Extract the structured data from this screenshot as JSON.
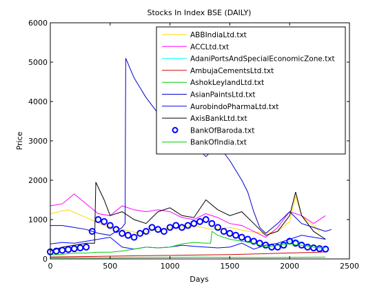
{
  "chart_data": {
    "type": "line",
    "title": "Stocks In Index BSE (DAILY)",
    "xlabel": "Days",
    "ylabel": "Price",
    "xlim": [
      0,
      2500
    ],
    "ylim": [
      0,
      6000
    ],
    "xticks": [
      0,
      500,
      1000,
      1500,
      2000,
      2500
    ],
    "yticks": [
      0,
      1000,
      2000,
      3000,
      4000,
      5000,
      6000
    ],
    "xtick_labels": [
      "0",
      "500",
      "1000",
      "1500",
      "2000",
      "2500"
    ],
    "ytick_labels": [
      "0",
      "1000",
      "2000",
      "3000",
      "4000",
      "5000",
      "6000"
    ],
    "grid": false,
    "legend_position": "top-right",
    "series": [
      {
        "name": "ABBIndiaLtd.txt",
        "color": "#ffd700",
        "marker": "line",
        "x": [
          0,
          150,
          300,
          450,
          600,
          750,
          900,
          1050,
          1200,
          1350,
          1500,
          1650,
          1800,
          1900,
          2000,
          2050,
          2100,
          2150,
          2200,
          2250
        ],
        "y": [
          1150,
          1250,
          1050,
          850,
          750,
          650,
          750,
          800,
          850,
          750,
          800,
          700,
          650,
          700,
          950,
          1600,
          1100,
          950,
          850,
          700
        ]
      },
      {
        "name": "ACCLtd.txt",
        "color": "#ff00ff",
        "marker": "line",
        "x": [
          0,
          100,
          200,
          300,
          400,
          500,
          600,
          700,
          800,
          900,
          1000,
          1100,
          1200,
          1300,
          1400,
          1500,
          1600,
          1700,
          1800,
          1900,
          2000,
          2100,
          2200,
          2300
        ],
        "y": [
          1350,
          1400,
          1650,
          1400,
          1150,
          1100,
          1350,
          1250,
          1200,
          1250,
          1200,
          1050,
          1000,
          1150,
          1050,
          900,
          850,
          700,
          550,
          800,
          1200,
          1100,
          900,
          1100
        ]
      },
      {
        "name": "AdaniPortsAndSpecialEconomicZone.txt",
        "color": "#00ffff",
        "marker": "line",
        "x": [
          1700,
          1800,
          1900,
          2000,
          2050,
          2100,
          2150,
          2200,
          2250,
          2300
        ],
        "y": [
          400,
          300,
          350,
          450,
          500,
          400,
          350,
          300,
          250,
          300
        ]
      },
      {
        "name": "AmbujaCementsLtd.txt",
        "color": "#cc0000",
        "marker": "line",
        "x": [
          0,
          250,
          500,
          750,
          1000,
          1250,
          1500,
          1750,
          2000,
          2250,
          2300
        ],
        "y": [
          50,
          60,
          70,
          80,
          90,
          100,
          110,
          130,
          150,
          170,
          180
        ]
      },
      {
        "name": "AshokLeylandLtd.txt",
        "color": "#00cc00",
        "marker": "line",
        "x": [
          0,
          250,
          500,
          750,
          1000,
          1250,
          1500,
          1750,
          2000,
          2250,
          2300
        ],
        "y": [
          30,
          30,
          30,
          35,
          40,
          45,
          40,
          35,
          40,
          45,
          45
        ]
      },
      {
        "name": "AsianPaintsLtd.txt",
        "color": "#0000cc",
        "marker": "line",
        "x": [
          0,
          100,
          200,
          300,
          400,
          500,
          600,
          625,
          630,
          700,
          800,
          900,
          1000,
          1100,
          1200,
          1300,
          1400,
          1500,
          1600,
          1650,
          1700,
          1750,
          1800,
          1900,
          2000,
          2100,
          2200,
          2300,
          2350
        ],
        "y": [
          850,
          850,
          800,
          750,
          650,
          600,
          800,
          900,
          5100,
          4600,
          4100,
          3700,
          3400,
          3200,
          2900,
          2600,
          2900,
          2500,
          2000,
          1700,
          1200,
          800,
          650,
          900,
          1200,
          900,
          800,
          700,
          750
        ]
      },
      {
        "name": "AurobindoPharmaLtd.txt",
        "color": "#0000ff",
        "marker": "line",
        "x": [
          0,
          100,
          200,
          300,
          400,
          500,
          600,
          700,
          800,
          900,
          1000,
          1100,
          1200,
          1300,
          1400,
          1500,
          1600,
          1700,
          1800,
          1900,
          2000,
          2100,
          2200,
          2300
        ],
        "y": [
          380,
          420,
          400,
          450,
          500,
          550,
          300,
          250,
          300,
          280,
          300,
          350,
          320,
          300,
          280,
          300,
          400,
          250,
          350,
          400,
          500,
          600,
          550,
          500
        ]
      },
      {
        "name": "AxisBankLtd.txt",
        "color": "#000000",
        "marker": "line",
        "x": [
          0,
          100,
          200,
          300,
          370,
          380,
          450,
          500,
          600,
          700,
          800,
          900,
          1000,
          1100,
          1200,
          1300,
          1400,
          1500,
          1600,
          1700,
          1800,
          1900,
          2000,
          2050,
          2100,
          2200,
          2300
        ],
        "y": [
          200,
          300,
          350,
          400,
          400,
          1950,
          1500,
          1100,
          1200,
          1000,
          900,
          1200,
          1300,
          1100,
          1050,
          1500,
          1250,
          1100,
          1200,
          900,
          600,
          700,
          1100,
          1700,
          1100,
          700,
          500
        ]
      },
      {
        "name": "BankOfBaroda.txt",
        "color": "#0000ff",
        "marker": "circle",
        "x": [
          0,
          50,
          100,
          150,
          200,
          250,
          300,
          350,
          400,
          450,
          500,
          550,
          600,
          650,
          700,
          750,
          800,
          850,
          900,
          950,
          1000,
          1050,
          1100,
          1150,
          1200,
          1250,
          1300,
          1350,
          1400,
          1450,
          1500,
          1550,
          1600,
          1650,
          1700,
          1750,
          1800,
          1850,
          1900,
          1950,
          2000,
          2050,
          2100,
          2150,
          2200,
          2250,
          2300
        ],
        "y": [
          180,
          200,
          220,
          240,
          260,
          280,
          300,
          700,
          1000,
          950,
          850,
          750,
          650,
          600,
          550,
          650,
          700,
          800,
          750,
          700,
          800,
          850,
          800,
          850,
          900,
          950,
          1000,
          900,
          800,
          700,
          650,
          600,
          550,
          500,
          450,
          400,
          350,
          300,
          300,
          350,
          450,
          400,
          350,
          300,
          280,
          260,
          250
        ]
      },
      {
        "name": "BankOfIndia.txt",
        "color": "#00cc00",
        "marker": "line",
        "x": [
          0,
          100,
          200,
          300,
          400,
          500,
          600,
          700,
          800,
          900,
          1000,
          1100,
          1200,
          1300,
          1340,
          1350,
          1400,
          1500,
          1600,
          1700,
          1800,
          1900,
          2000,
          2100,
          2200,
          2300
        ],
        "y": [
          100,
          120,
          150,
          150,
          170,
          170,
          200,
          250,
          300,
          280,
          300,
          380,
          420,
          400,
          400,
          700,
          600,
          500,
          450,
          400,
          300,
          350,
          380,
          350,
          300,
          280
        ]
      }
    ]
  }
}
